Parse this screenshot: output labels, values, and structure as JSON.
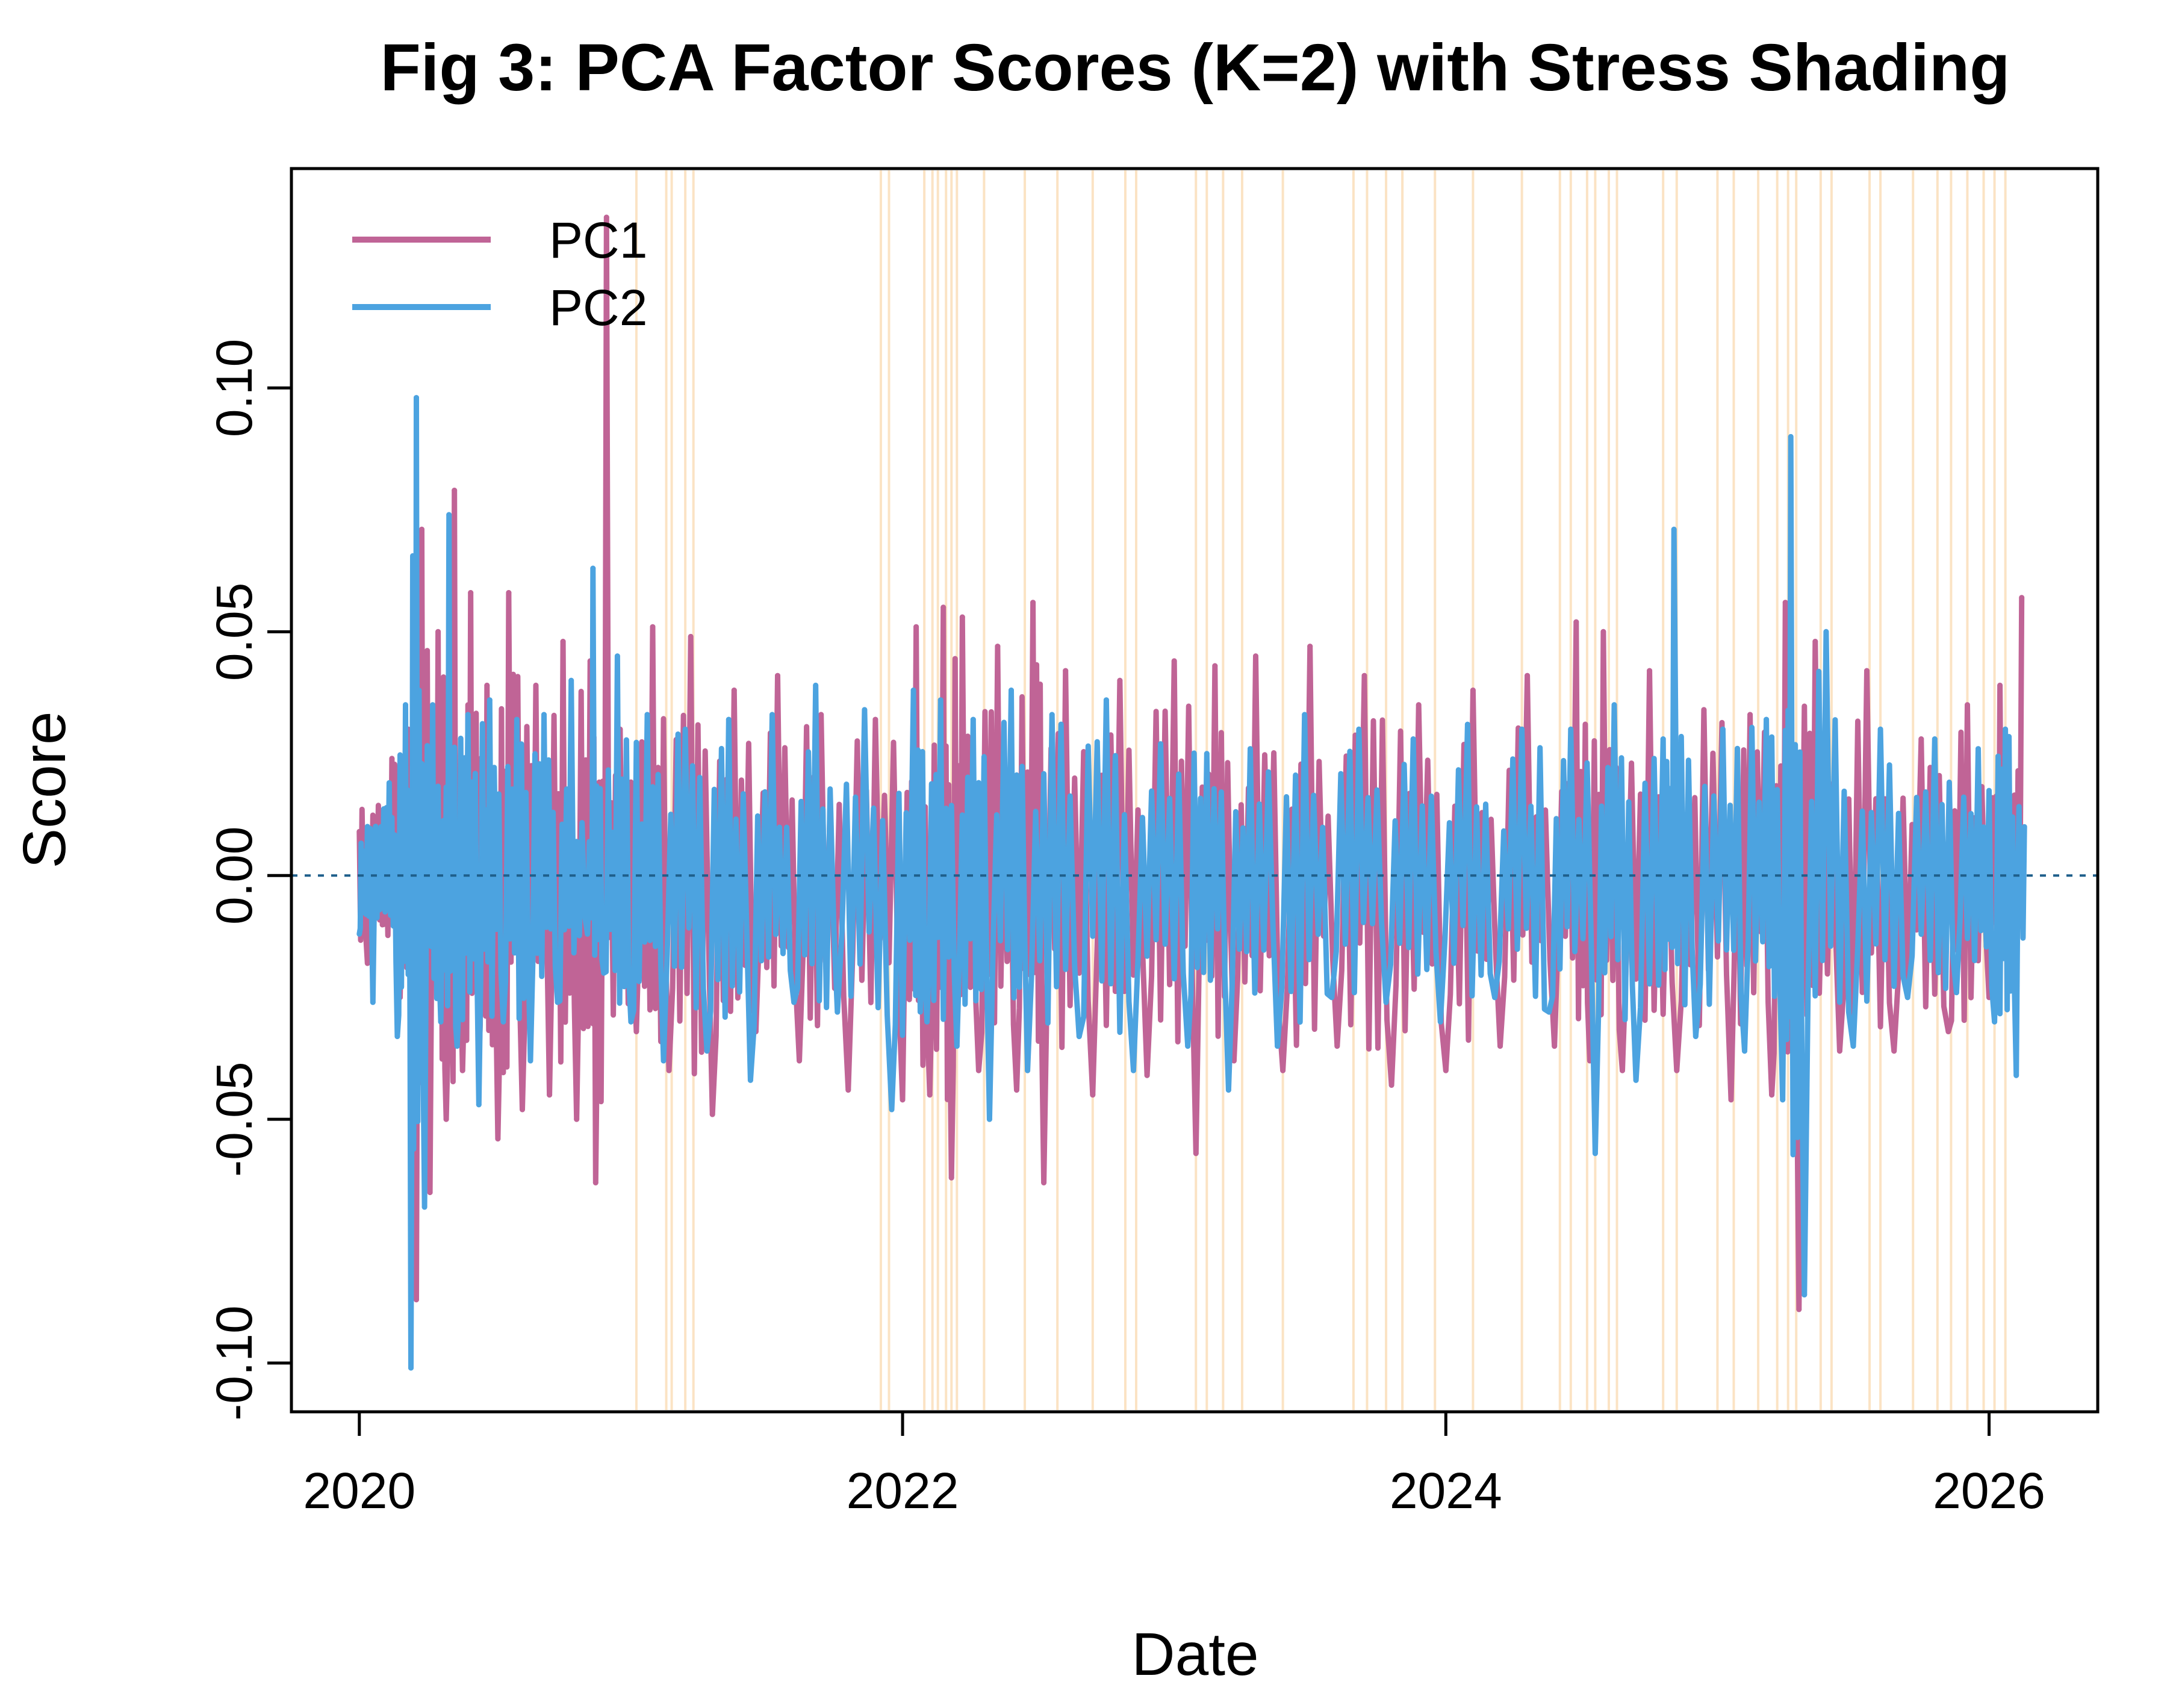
{
  "chart_data": {
    "type": "line",
    "title": "Fig 3: PCA Factor Scores (K=2) with Stress Shading",
    "xlabel": "Date",
    "ylabel": "Score",
    "xlim": [
      2019.75,
      2026.4
    ],
    "ylim": [
      -0.11,
      0.145
    ],
    "x_ticks": [
      {
        "value": 2020,
        "label": "2020"
      },
      {
        "value": 2022,
        "label": "2022"
      },
      {
        "value": 2024,
        "label": "2024"
      },
      {
        "value": 2026,
        "label": "2026"
      }
    ],
    "y_ticks": [
      {
        "value": -0.1,
        "label": "-0.10"
      },
      {
        "value": -0.05,
        "label": "-0.05"
      },
      {
        "value": 0.0,
        "label": "0.00"
      },
      {
        "value": 0.05,
        "label": "0.05"
      },
      {
        "value": 0.1,
        "label": "0.10"
      }
    ],
    "reference_line": {
      "y": 0,
      "style": "dotted",
      "color": "#1f5f8b"
    },
    "legend": {
      "position": "top-left"
    },
    "stress_shading": {
      "color": "#fbe3c4",
      "dates": [
        2021.02,
        2021.13,
        2021.15,
        2021.2,
        2021.23,
        2021.92,
        2021.95,
        2022.08,
        2022.11,
        2022.13,
        2022.16,
        2022.18,
        2022.2,
        2022.3,
        2022.45,
        2022.57,
        2022.7,
        2022.82,
        2022.86,
        2023.08,
        2023.12,
        2023.18,
        2023.25,
        2023.4,
        2023.66,
        2023.71,
        2023.78,
        2023.84,
        2023.96,
        2024.1,
        2024.28,
        2024.42,
        2024.46,
        2024.52,
        2024.55,
        2024.6,
        2024.63,
        2024.8,
        2024.85,
        2025.0,
        2025.06,
        2025.15,
        2025.22,
        2025.26,
        2025.29,
        2025.38,
        2025.42,
        2025.56,
        2025.6,
        2025.72,
        2025.81,
        2025.86,
        2025.92,
        2025.98,
        2026.02,
        2026.06
      ]
    },
    "series": [
      {
        "name": "PC1",
        "color": "#c06496",
        "x": [
          2020.0,
          2020.03,
          2020.06,
          2020.09,
          2020.12,
          2020.15,
          2020.18,
          2020.21,
          2020.23,
          2020.26,
          2020.29,
          2020.32,
          2020.35,
          2020.38,
          2020.41,
          2020.44,
          2020.47,
          2020.51,
          2020.55,
          2020.6,
          2020.65,
          2020.7,
          2020.75,
          2020.8,
          2020.85,
          2020.87,
          2020.91,
          2020.96,
          2021.02,
          2021.08,
          2021.14,
          2021.22,
          2021.3,
          2021.38,
          2021.46,
          2021.54,
          2021.62,
          2021.7,
          2021.8,
          2021.9,
          2022.0,
          2022.05,
          2022.1,
          2022.15,
          2022.18,
          2022.22,
          2022.28,
          2022.35,
          2022.42,
          2022.48,
          2022.52,
          2022.6,
          2022.7,
          2022.8,
          2022.9,
          2023.0,
          2023.08,
          2023.15,
          2023.22,
          2023.3,
          2023.4,
          2023.5,
          2023.6,
          2023.7,
          2023.8,
          2023.9,
          2024.0,
          2024.1,
          2024.2,
          2024.3,
          2024.4,
          2024.48,
          2024.53,
          2024.58,
          2024.65,
          2024.75,
          2024.85,
          2024.95,
          2025.05,
          2025.12,
          2025.2,
          2025.25,
          2025.3,
          2025.36,
          2025.45,
          2025.55,
          2025.65,
          2025.75,
          2025.85,
          2025.92,
          2026.0,
          2026.04,
          2026.08,
          2026.12
        ],
        "values": [
          0.009,
          -0.018,
          0.012,
          -0.01,
          0.024,
          -0.025,
          0.03,
          -0.087,
          0.071,
          -0.065,
          0.05,
          -0.05,
          0.079,
          -0.04,
          0.058,
          -0.038,
          0.039,
          -0.054,
          0.058,
          -0.048,
          0.039,
          -0.045,
          0.048,
          -0.05,
          0.044,
          -0.063,
          0.135,
          0.03,
          -0.032,
          0.051,
          -0.04,
          0.049,
          -0.049,
          0.038,
          -0.032,
          0.041,
          -0.038,
          0.033,
          -0.044,
          0.032,
          -0.046,
          0.051,
          -0.045,
          0.055,
          -0.062,
          0.053,
          -0.04,
          0.047,
          -0.044,
          0.056,
          -0.063,
          0.042,
          -0.045,
          0.04,
          -0.041,
          0.044,
          -0.057,
          0.043,
          -0.038,
          0.045,
          -0.04,
          0.047,
          -0.035,
          0.041,
          -0.043,
          0.035,
          -0.04,
          0.038,
          -0.035,
          0.041,
          -0.035,
          0.052,
          -0.038,
          0.05,
          -0.04,
          0.042,
          -0.04,
          0.034,
          -0.046,
          0.033,
          -0.045,
          0.056,
          -0.089,
          0.048,
          -0.036,
          0.042,
          -0.036,
          0.028,
          -0.032,
          0.035,
          -0.025,
          0.039,
          -0.02,
          0.057
        ]
      },
      {
        "name": "PC2",
        "color": "#4ca3e0",
        "x": [
          2020.0,
          2020.02,
          2020.05,
          2020.08,
          2020.11,
          2020.14,
          2020.17,
          2020.19,
          2020.21,
          2020.24,
          2020.27,
          2020.3,
          2020.33,
          2020.36,
          2020.4,
          2020.44,
          2020.48,
          2020.53,
          2020.58,
          2020.63,
          2020.68,
          2020.73,
          2020.78,
          2020.84,
          2020.86,
          2020.9,
          2020.95,
          2021.0,
          2021.06,
          2021.12,
          2021.2,
          2021.28,
          2021.36,
          2021.44,
          2021.52,
          2021.6,
          2021.68,
          2021.76,
          2021.86,
          2021.96,
          2022.04,
          2022.09,
          2022.14,
          2022.2,
          2022.26,
          2022.32,
          2022.4,
          2022.46,
          2022.55,
          2022.65,
          2022.75,
          2022.85,
          2022.95,
          2023.05,
          2023.12,
          2023.2,
          2023.28,
          2023.38,
          2023.48,
          2023.58,
          2023.68,
          2023.78,
          2023.88,
          2023.98,
          2024.08,
          2024.18,
          2024.28,
          2024.38,
          2024.46,
          2024.55,
          2024.62,
          2024.7,
          2024.8,
          2024.84,
          2024.92,
          2025.02,
          2025.1,
          2025.18,
          2025.24,
          2025.27,
          2025.32,
          2025.4,
          2025.5,
          2025.6,
          2025.7,
          2025.8,
          2025.88,
          2025.96,
          2026.02,
          2026.06,
          2026.1,
          2026.13
        ],
        "values": [
          -0.012,
          0.005,
          -0.026,
          0.01,
          0.019,
          -0.033,
          0.035,
          -0.101,
          0.098,
          -0.068,
          0.035,
          -0.03,
          0.074,
          -0.035,
          0.033,
          -0.047,
          0.036,
          -0.03,
          0.032,
          -0.038,
          0.033,
          -0.026,
          0.04,
          -0.012,
          0.063,
          -0.02,
          0.045,
          -0.03,
          0.033,
          -0.038,
          0.03,
          -0.036,
          0.032,
          -0.042,
          0.033,
          -0.026,
          0.039,
          -0.028,
          0.034,
          -0.048,
          0.038,
          -0.03,
          0.036,
          -0.035,
          0.032,
          -0.05,
          0.038,
          -0.04,
          0.033,
          -0.033,
          0.036,
          -0.04,
          0.027,
          -0.035,
          0.025,
          -0.044,
          0.026,
          -0.035,
          0.033,
          -0.025,
          0.03,
          -0.026,
          0.028,
          -0.03,
          0.031,
          -0.025,
          0.03,
          -0.028,
          0.03,
          -0.057,
          0.035,
          -0.042,
          0.028,
          0.071,
          -0.033,
          0.03,
          -0.036,
          0.032,
          -0.046,
          0.09,
          -0.086,
          0.05,
          -0.035,
          0.03,
          -0.025,
          0.028,
          -0.024,
          0.026,
          -0.03,
          0.03,
          -0.041,
          0.01
        ]
      }
    ]
  }
}
